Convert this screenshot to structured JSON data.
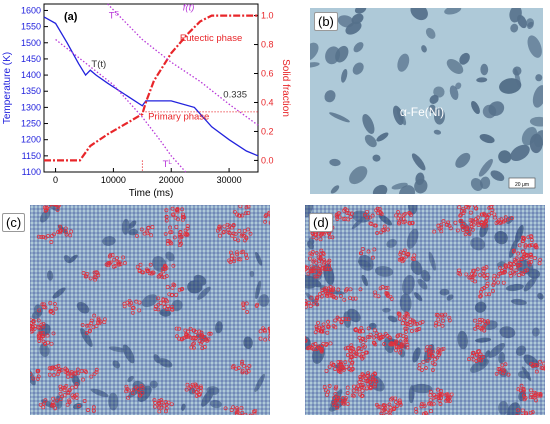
{
  "chart_data": {
    "type": "line",
    "panel_label": "(a)",
    "xlabel": "Time (ms)",
    "ylabel_left": "Temperature (K)",
    "ylabel_right": "Solid fraction",
    "xlim": [
      -2000,
      35000
    ],
    "ylim_left": [
      1100,
      1620
    ],
    "ylim_right": [
      -0.08,
      1.08
    ],
    "x_ticks": [
      0,
      10000,
      20000,
      30000
    ],
    "y_ticks_left": [
      1100,
      1150,
      1200,
      1250,
      1300,
      1350,
      1400,
      1450,
      1500,
      1550,
      1600
    ],
    "y_ticks_right": [
      0.0,
      0.2,
      0.4,
      0.6,
      0.8,
      1.0
    ],
    "y_ticks_right_labels": [
      "0.0",
      "0.2",
      "0.4",
      "0.6",
      "0.8",
      "1.0"
    ],
    "series": [
      {
        "name": "T(t)",
        "axis": "left",
        "color": "#2222dd",
        "style": "solid",
        "x": [
          -2000,
          0,
          2000,
          4000,
          5200,
          6000,
          7000,
          9000,
          12000,
          15000,
          15600,
          20000,
          24000,
          27000,
          30000,
          33000,
          35000
        ],
        "y": [
          1580,
          1560,
          1500,
          1435,
          1400,
          1415,
          1400,
          1375,
          1340,
          1305,
          1320,
          1320,
          1300,
          1240,
          1200,
          1165,
          1150
        ]
      },
      {
        "name": "f(t)",
        "axis": "right",
        "color": "#e8262a",
        "style": "dashdot",
        "x": [
          -2000,
          4200,
          6000,
          9000,
          12000,
          15000,
          15600,
          17000,
          20000,
          23000,
          25000,
          27000,
          28000,
          35000
        ],
        "y": [
          0.0,
          0.0,
          0.1,
          0.18,
          0.25,
          0.32,
          0.4,
          0.55,
          0.74,
          0.88,
          0.96,
          1.0,
          1.0,
          1.0
        ]
      },
      {
        "name": "T^S",
        "axis": "left",
        "color": "#b838d8",
        "style": "dotted",
        "x": [
          9000,
          15000,
          20000,
          25000,
          30000,
          35000
        ],
        "y": [
          1620,
          1510,
          1440,
          1380,
          1310,
          1245
        ]
      },
      {
        "name": "T^L",
        "axis": "left",
        "color": "#b838d8",
        "style": "dotted",
        "x": [
          0,
          5000,
          10000,
          15000,
          18000,
          20000,
          22500
        ],
        "y": [
          1510,
          1440,
          1370,
          1270,
          1200,
          1150,
          1100
        ]
      }
    ],
    "annotations": [
      {
        "text": "T(t)",
        "x": 6200,
        "y": 1425,
        "color": "#333333"
      },
      {
        "text": "f(t)",
        "x": 22000,
        "y": 1600,
        "color": "#b838d8",
        "italic": true
      },
      {
        "text": "T",
        "sup": "S",
        "x": 9200,
        "y": 1575,
        "color": "#b838d8"
      },
      {
        "text": "T",
        "sup": "L",
        "x": 18500,
        "y": 1115,
        "color": "#b838d8"
      },
      {
        "text": "Eutectic phase",
        "x": 21500,
        "y": 1505,
        "color": "#e8262a"
      },
      {
        "text": "Primary phase",
        "x": 16000,
        "y": 1262,
        "color": "#e8262a"
      },
      {
        "text": "0.335",
        "x": 29000,
        "y": 1330,
        "color": "#333333"
      }
    ],
    "reference_lines": {
      "vline_x": 15000,
      "hline_fraction": 0.335,
      "hline_x_range": [
        15000,
        35000
      ]
    }
  },
  "panels": {
    "b": {
      "label": "(b)",
      "phase_label": "α-Fe(Ni)",
      "scale_label": "20 μm"
    },
    "c": {
      "label": "(c)"
    },
    "d": {
      "label": "(d)"
    }
  },
  "colors": {
    "micrograph_bg": "#aec9d8",
    "particle": "#55708a",
    "grid": "#1c2f8a",
    "marker": "#e0303c"
  }
}
